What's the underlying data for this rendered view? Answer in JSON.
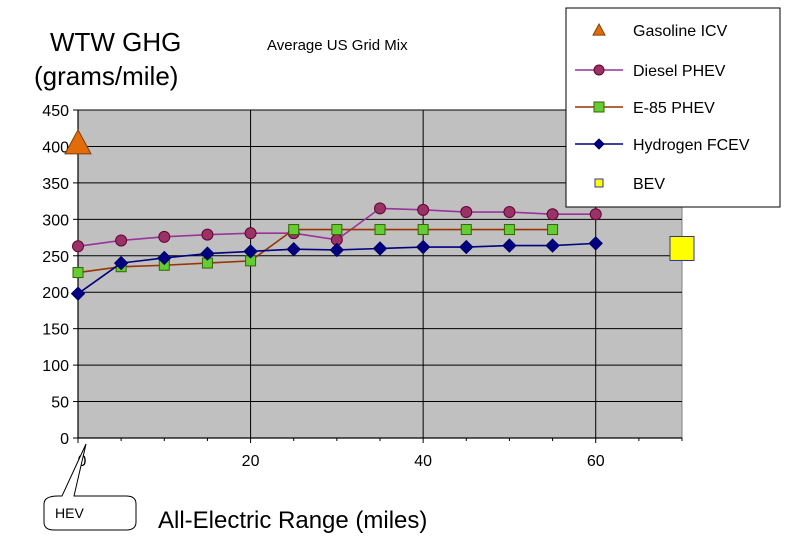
{
  "chart_data": {
    "type": "line",
    "title": "Average US Grid Mix",
    "ylabel_line1": "WTW GHG",
    "ylabel_line2": "(grams/mile)",
    "xlabel": "All-Electric Range (miles)",
    "ylim": [
      0,
      450
    ],
    "xlim": [
      0,
      70
    ],
    "y_ticks": [
      "0",
      "50",
      "100",
      "150",
      "200",
      "250",
      "300",
      "350",
      "400",
      "450"
    ],
    "x_ticks": [
      "0",
      "20",
      "40",
      "60"
    ],
    "grid": true,
    "legend_position": "top-right",
    "callout": "HEV",
    "series": [
      {
        "name": "Gasoline ICV",
        "marker": "triangle",
        "color": "#e36c0a",
        "stroke": "#7f3f0a",
        "line": false,
        "x": [
          0
        ],
        "y": [
          405
        ]
      },
      {
        "name": "Diesel PHEV",
        "marker": "circle",
        "color": "#993366",
        "stroke": "#660033",
        "line_color": "#993399",
        "line": true,
        "x": [
          0,
          5,
          10,
          15,
          20,
          25,
          30,
          35,
          40,
          45,
          50,
          55,
          60
        ],
        "y": [
          263,
          271,
          276,
          279,
          281,
          281,
          272,
          315,
          313,
          310,
          310,
          307,
          307
        ]
      },
      {
        "name": "E-85 PHEV",
        "marker": "square",
        "color": "#66cc33",
        "stroke": "#336600",
        "line_color": "#993300",
        "line": true,
        "x": [
          0,
          5,
          10,
          15,
          20,
          25,
          30,
          35,
          40,
          45,
          50,
          55
        ],
        "y": [
          227,
          235,
          237,
          240,
          243,
          286,
          286,
          286,
          286,
          286,
          286,
          286
        ]
      },
      {
        "name": "Hydrogen FCEV",
        "marker": "diamond",
        "color": "#000080",
        "stroke": "#000066",
        "line_color": "#000080",
        "line": true,
        "x": [
          0,
          5,
          10,
          15,
          20,
          25,
          30,
          35,
          40,
          45,
          50,
          55,
          60
        ],
        "y": [
          198,
          240,
          247,
          253,
          256,
          259,
          258,
          260,
          262,
          262,
          264,
          264,
          267
        ]
      },
      {
        "name": "BEV",
        "marker": "square",
        "color": "#ffff00",
        "stroke": "#333399",
        "line": false,
        "x": [
          70
        ],
        "y": [
          260
        ]
      }
    ]
  }
}
